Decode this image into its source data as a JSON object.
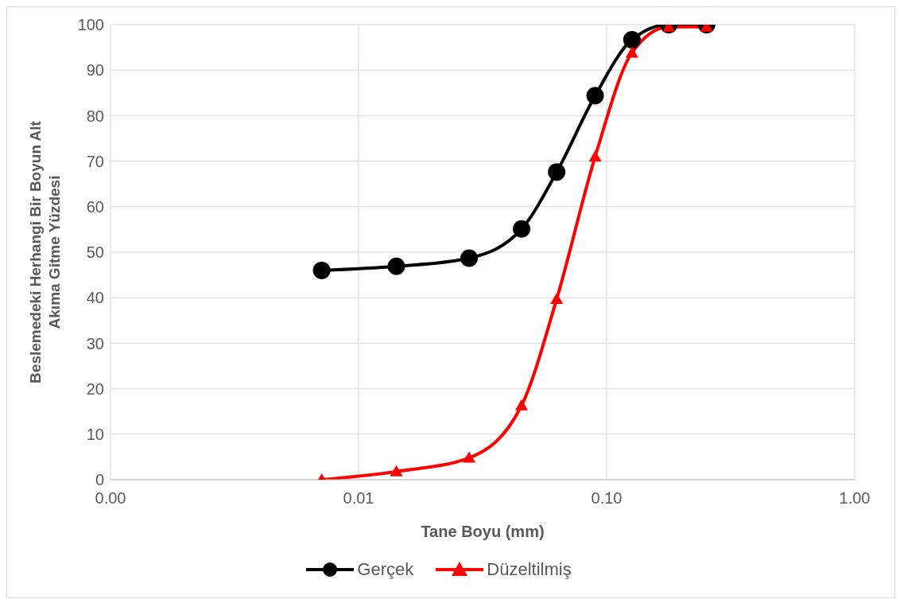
{
  "chart_data": {
    "type": "line",
    "xlabel": "Tane Boyu (mm)",
    "ylabel": "Beslemedeki Herhangi Bir Boyun Alt Akıma Gitme Yüzdesi",
    "x": [
      0.0071,
      0.0142,
      0.0279,
      0.0454,
      0.0629,
      0.0899,
      0.1265,
      0.178,
      0.253
    ],
    "series": [
      {
        "name": "Gerçek",
        "color": "#000000",
        "marker": "circle",
        "values": [
          46.0,
          46.9,
          48.7,
          55.1,
          67.6,
          84.4,
          96.7,
          100,
          100
        ]
      },
      {
        "name": "Düzeltilmiş",
        "color": "#ff0000",
        "marker": "triangle",
        "values": [
          0,
          1.8,
          4.8,
          16.3,
          39.7,
          71,
          93.8,
          99.5,
          99.5
        ]
      }
    ],
    "log": "x",
    "xlim": [
      0.001,
      1
    ],
    "xticks": [
      {
        "value": 0.001,
        "label": "0.00"
      },
      {
        "value": 0.01,
        "label": "0.01"
      },
      {
        "value": 0.1,
        "label": "0.10"
      },
      {
        "value": 1,
        "label": "1.00"
      }
    ],
    "ylim": [
      0,
      100
    ],
    "yticks": [
      0,
      10,
      20,
      30,
      40,
      50,
      60,
      70,
      80,
      90,
      100
    ],
    "grid": true,
    "legend": "bottom"
  }
}
